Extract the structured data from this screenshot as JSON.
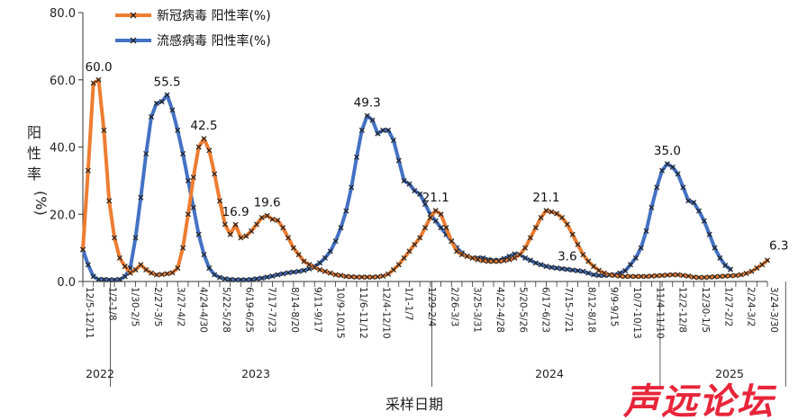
{
  "chart_data": {
    "type": "line",
    "xlabel": "采样日期",
    "ylabel": "阳性率(%)",
    "ylim": [
      0,
      80
    ],
    "yticks": [
      "0.0",
      "20.0",
      "40.0",
      "60.0",
      "80.0"
    ],
    "grid": false,
    "legend_position": "top-left",
    "x_tick_labels": [
      "12/5-12/11",
      "1/2-1/8",
      "1/30-2/5",
      "2/27-3/5",
      "3/27-4/2",
      "4/24-4/30",
      "5/22-5/28",
      "6/19-6/25",
      "7/17-7/23",
      "8/14-8/20",
      "9/11-9/17",
      "10/9-10/15",
      "11/6-11/12",
      "12/4-12/10",
      "1/1-1/7",
      "1/29-2/4",
      "2/26-3/3",
      "3/25-3/31",
      "4/22-4/28",
      "5/20-5/26",
      "6/17-6/23",
      "7/15-7/21",
      "8/12-8/18",
      "9/9-9/15",
      "10/7-10/13",
      "11/4-11/10",
      "12/2-12/8",
      "12/30-1/5",
      "1/27-2/2",
      "2/24-3/2",
      "3/24-3/30"
    ],
    "years": [
      "2022",
      "2023",
      "2024",
      "2025"
    ],
    "series": [
      {
        "name": "新冠病毒 阳性率(%)",
        "color": "#ed7d31",
        "values": [
          9.5,
          33,
          59,
          60,
          45,
          24,
          13,
          7,
          4.5,
          2.5,
          3.5,
          5,
          3.5,
          2.5,
          2,
          2.1,
          2.3,
          2.6,
          4,
          10,
          20,
          31,
          40,
          42.5,
          39,
          32,
          24,
          17,
          14,
          16.9,
          13,
          13.5,
          15,
          17,
          19,
          19.6,
          18.5,
          18.2,
          16,
          13,
          10,
          8,
          6,
          5,
          4.2,
          3.5,
          3,
          2.5,
          2,
          1.8,
          1.5,
          1.4,
          1.3,
          1.3,
          1.3,
          1.3,
          1.4,
          1.6,
          2.2,
          3.5,
          5,
          7,
          9,
          11,
          13,
          16,
          19,
          21.1,
          20,
          16,
          12,
          9,
          8,
          7.5,
          7,
          6.5,
          6.2,
          6,
          6,
          6,
          6.2,
          6.5,
          7,
          8,
          10,
          13,
          16,
          19,
          21.1,
          20.7,
          20.2,
          19,
          17,
          14,
          11,
          8,
          6,
          4.5,
          3.3,
          2.5,
          2,
          1.8,
          1.6,
          1.5,
          1.5,
          1.5,
          1.5,
          1.5,
          1.6,
          1.7,
          1.8,
          1.9,
          2,
          2,
          1.8,
          1.6,
          1.3,
          1.2,
          1.2,
          1.3,
          1.4,
          1.5,
          1.6,
          1.7,
          1.8,
          2,
          2.4,
          3,
          4,
          5,
          6.3
        ]
      },
      {
        "name": "流感病毒 阳性率(%)",
        "color": "#4472c4",
        "values": [
          9.5,
          5,
          1.5,
          0.6,
          0.6,
          0.5,
          0.5,
          0.6,
          1.5,
          4,
          13,
          25,
          38,
          49,
          53,
          53.5,
          55.5,
          51,
          45,
          38,
          30,
          22,
          14,
          8,
          4,
          2,
          1.2,
          0.8,
          0.6,
          0.5,
          0.5,
          0.5,
          0.6,
          0.8,
          1,
          1.3,
          1.6,
          2,
          2.3,
          2.6,
          2.8,
          3,
          3.3,
          3.8,
          4.5,
          5.5,
          7,
          9,
          12,
          16,
          21,
          28,
          37,
          45,
          49.3,
          48,
          44,
          45,
          45,
          42,
          36,
          30,
          29,
          27,
          26,
          23,
          20,
          18,
          16,
          14,
          12,
          10,
          8.5,
          7.5,
          7,
          7,
          7,
          6.5,
          6.3,
          6.3,
          6.8,
          7.5,
          8.2,
          8,
          7,
          6.3,
          5.5,
          5,
          4.5,
          4.2,
          4,
          3.8,
          3.6,
          3.4,
          3.2,
          3,
          2.5,
          2,
          1.8,
          1.8,
          1.9,
          2,
          2.5,
          3.2,
          5,
          7,
          10,
          15,
          22,
          28,
          33,
          35,
          34,
          32,
          28,
          24,
          23.5,
          21,
          18,
          14,
          10,
          7,
          4.8,
          3.6
        ]
      }
    ],
    "data_labels": [
      {
        "series": 0,
        "text": "60.0"
      },
      {
        "series": 1,
        "text": "55.5"
      },
      {
        "series": 0,
        "text": "42.5"
      },
      {
        "series": 0,
        "text": "16.9"
      },
      {
        "series": 0,
        "text": "19.6"
      },
      {
        "series": 1,
        "text": "49.3"
      },
      {
        "series": 0,
        "text": "21.1"
      },
      {
        "series": 0,
        "text": "21.1"
      },
      {
        "series": 1,
        "text": "35.0"
      },
      {
        "series": 0,
        "text": "6.3"
      },
      {
        "series": 1,
        "text": "3.6"
      }
    ]
  },
  "watermark": {
    "text": "声远论坛",
    "color": "#e8253a"
  }
}
